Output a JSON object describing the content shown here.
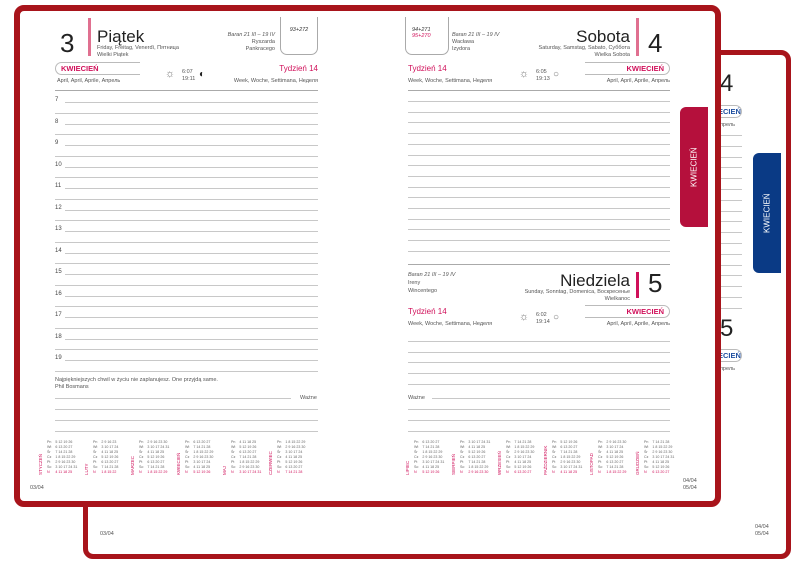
{
  "colors": {
    "cover": "#a8141b",
    "accent": "#d0105a",
    "tab_red": "#b5103c",
    "tab_blue": "#0a3a85"
  },
  "tabs": {
    "red": "KWIECIEŃ",
    "blue": "KWIECIEŃ"
  },
  "left_page": {
    "day_number": "3",
    "day_name": "Piątek",
    "day_translations": "Friday, Freitag, Venerdì, Пятница",
    "holiday": "Wielki Piątek",
    "zodiac": "Baran 21 III – 19 IV",
    "namedays": [
      "Ryszarda",
      "Pankracego"
    ],
    "day_of_year": "93+272",
    "month": "KWIECIEŃ",
    "month_translations": "April, April, Aprile, Апрель",
    "sunrise": "6:07",
    "sunset": "19:11",
    "moon_icon": "moon-last-quarter-icon",
    "week": "Tydzień 14",
    "week_translations": "Week, Woche, Settimana, Неделя",
    "hours": [
      "7",
      "8",
      "9",
      "10",
      "11",
      "12",
      "13",
      "14",
      "15",
      "16",
      "17",
      "18",
      "19"
    ],
    "quote": "Najpiękniejszych chwil w życiu nie zaplanujesz. One przyjdą same.",
    "quote_author": "Phil Bosmans",
    "important_label": "Ważne",
    "page_date": "03/04"
  },
  "right_page": {
    "saturday": {
      "day_number": "4",
      "day_name": "Sobota",
      "day_translations": "Saturday, Samstag, Sabato, Суббота",
      "holiday": "Wielka Sobota",
      "zodiac": "Baran 21 III – 19 IV",
      "namedays": [
        "Wacława",
        "Izydora"
      ],
      "day_of_year": "94+271",
      "day_of_year_sunday": "95+270",
      "week": "Tydzień 14",
      "week_translations": "Week, Woche, Settimana, Неделя",
      "sunrise": "6:05",
      "sunset": "19:13",
      "month": "KWIECIEŃ",
      "month_translations": "April, April, Aprile, Апрель"
    },
    "sunday": {
      "day_number": "5",
      "day_name": "Niedziela",
      "day_translations": "Sunday, Sonntag, Domenica, Воскресенье",
      "holiday": "Wielkanoc",
      "zodiac": "Baran 21 III – 19 IV",
      "namedays": [
        "Ireny",
        "Wincentego"
      ],
      "week": "Tydzień 14",
      "week_translations": "Week, Woche, Settimana, Неделя",
      "sunrise": "6:02",
      "sunset": "19:14",
      "month": "KWIECIEŃ",
      "month_translations": "April, April, Aprile, Апрель"
    },
    "important_label": "Ważne",
    "page_dates": [
      "04/04",
      "05/04"
    ]
  },
  "back_book": {
    "day_numbers": [
      "4",
      "5"
    ],
    "month_fragment": "ECIEŃ",
    "month_translations_fragment": "l, Апрель",
    "page_date_left": "03/04",
    "page_dates_right": [
      "04/04",
      "05/04"
    ]
  },
  "weekdays": [
    "Pn",
    "Wt",
    "Śr",
    "Cz",
    "Pt",
    "So",
    "N"
  ],
  "calendars_left": [
    {
      "month": "STYCZEŃ",
      "rows": [
        "5 12 19 26",
        "6 13 20 27",
        "7 14 21 28",
        "1 8 15 22 29",
        "2 9 16 23 30",
        "3 10 17 24 31",
        "4 11 18 25"
      ]
    },
    {
      "month": "LUTY",
      "rows": [
        "2 9 16 23",
        "3 10 17 24",
        "4 11 18 25",
        "5 12 19 26",
        "6 13 20 27",
        "7 14 21 28",
        "1 8 15 22"
      ]
    },
    {
      "month": "MARZEC",
      "rows": [
        "2 9 16 23 30",
        "3 10 17 24 31",
        "4 11 18 25",
        "5 12 19 26",
        "6 13 20 27",
        "7 14 21 28",
        "1 8 15 22 29"
      ]
    },
    {
      "month": "KWIECIEŃ",
      "rows": [
        "6 13 20 27",
        "7 14 21 28",
        "1 8 15 22 29",
        "2 9 16 23 30",
        "3 10 17 24",
        "4 11 18 25",
        "5 12 19 26"
      ]
    },
    {
      "month": "MAJ",
      "rows": [
        "4 11 18 25",
        "5 12 19 26",
        "6 13 20 27",
        "7 14 21 28",
        "1 8 15 22 29",
        "2 9 16 23 30",
        "3 10 17 24 31"
      ]
    },
    {
      "month": "CZERWIEC",
      "rows": [
        "1 8 15 22 29",
        "2 9 16 23 30",
        "3 10 17 24",
        "4 11 18 25",
        "5 12 19 26",
        "6 13 20 27",
        "7 14 21 28"
      ]
    }
  ],
  "calendars_right": [
    {
      "month": "LIPIEC",
      "rows": [
        "6 13 20 27",
        "7 14 21 28",
        "1 8 15 22 29",
        "2 9 16 23 30",
        "3 10 17 24 31",
        "4 11 18 25",
        "5 12 19 26"
      ]
    },
    {
      "month": "SIERPIEŃ",
      "rows": [
        "3 10 17 24 31",
        "4 11 18 25",
        "5 12 19 26",
        "6 13 20 27",
        "7 14 21 28",
        "1 8 15 22 29",
        "2 9 16 23 30"
      ]
    },
    {
      "month": "WRZESIEŃ",
      "rows": [
        "7 14 21 28",
        "1 8 15 22 29",
        "2 9 16 23 30",
        "3 10 17 24",
        "4 11 18 25",
        "5 12 19 26",
        "6 13 20 27"
      ]
    },
    {
      "month": "PAŹDZIERNIK",
      "rows": [
        "5 12 19 26",
        "6 13 20 27",
        "7 14 21 28",
        "1 8 15 22 29",
        "2 9 16 23 30",
        "3 10 17 24 31",
        "4 11 18 25"
      ]
    },
    {
      "month": "LISTOPAD",
      "rows": [
        "2 9 16 23 30",
        "3 10 17 24",
        "4 11 18 25",
        "5 12 19 26",
        "6 13 20 27",
        "7 14 21 28",
        "1 8 15 22 29"
      ]
    },
    {
      "month": "GRUDZIEŃ",
      "rows": [
        "7 14 21 28",
        "1 8 15 22 29",
        "2 9 16 23 30",
        "3 10 17 24 31",
        "4 11 18 25",
        "5 12 19 26",
        "6 13 20 27"
      ]
    }
  ]
}
